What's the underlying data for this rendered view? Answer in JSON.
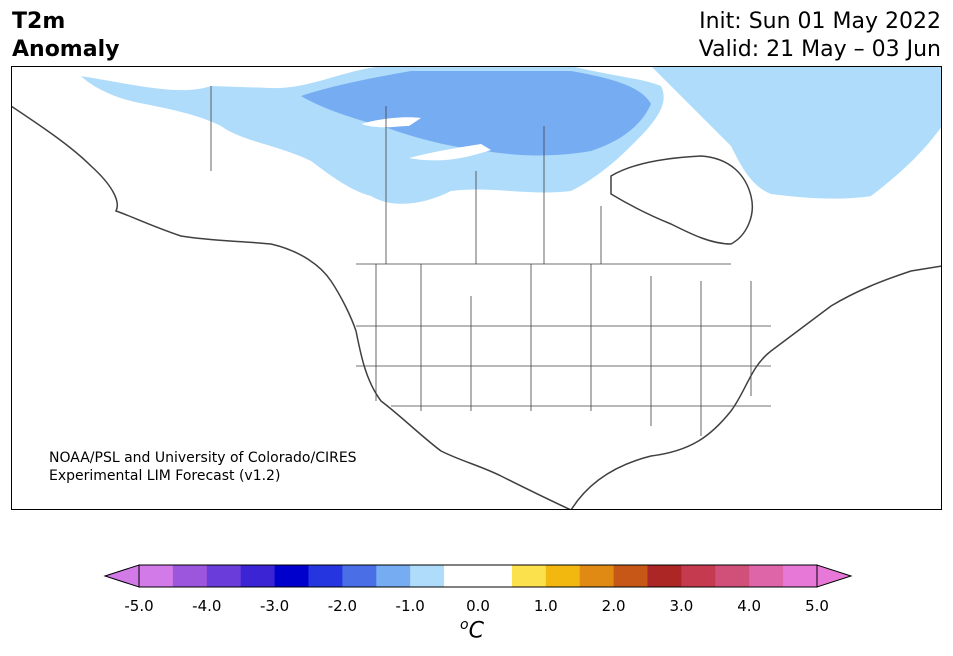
{
  "title": {
    "line1": "T2m",
    "line2": "Anomaly"
  },
  "header_right": {
    "init": "Init: Sun 01 May 2022",
    "valid": "Valid: 21 May – 03 Jun"
  },
  "credit": {
    "line1": "NOAA/PSL and University of Colorado/CIRES",
    "line2": "Experimental LIM Forecast (v1.2)"
  },
  "colorbar": {
    "unit_base": "C",
    "unit_prefix": "o",
    "ticks": [
      "-5.0",
      "-4.0",
      "-3.0",
      "-2.0",
      "-1.0",
      "0.0",
      "1.0",
      "2.0",
      "3.0",
      "4.0",
      "5.0"
    ],
    "colors": [
      "#d27ae8",
      "#9c55dd",
      "#6a3cd9",
      "#3a24d4",
      "#0000cd",
      "#2536e0",
      "#4a6ee6",
      "#76adf2",
      "#afdcfb",
      "#ffffff",
      "#ffffff",
      "#fbe24c",
      "#f2b80f",
      "#e08a14",
      "#c65716",
      "#ad2626",
      "#c53a4e",
      "#d1507a",
      "#dd65a8",
      "#e878d8"
    ],
    "under_color": "#d27ae8",
    "over_color": "#e878d8"
  },
  "map": {
    "region": "North America",
    "anomaly_colors": {
      "weak_cool": "#afdcfb",
      "moderate_cool": "#76adf2",
      "water": "#ffffff",
      "land": "#ffffff",
      "coast": "#404040"
    }
  }
}
